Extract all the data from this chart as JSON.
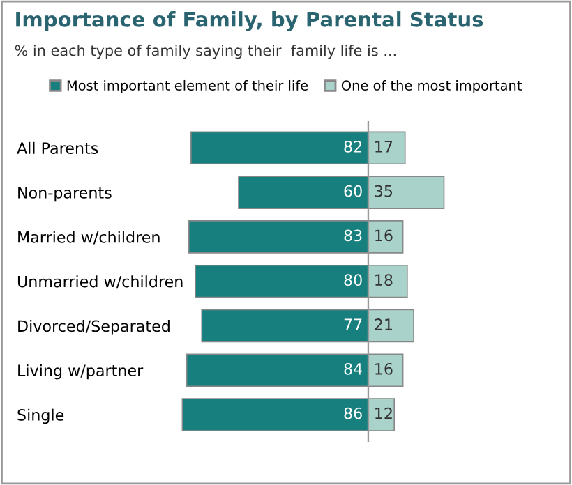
{
  "chart_data": [
    {
      "type": "bar",
      "orientation": "horizontal",
      "title": "Importance of Family, by Parental Status",
      "subtitle": "% in each type of family saying their  family life is ...",
      "categories": [
        "All Parents",
        "Non-parents",
        "Married w/children",
        "Unmarried w/children",
        "Divorced/Separated",
        "Living w/partner",
        "Single"
      ],
      "series": [
        {
          "name": "Most important element of their life",
          "color": "#17807e",
          "values": [
            82,
            60,
            83,
            80,
            77,
            84,
            86
          ]
        }
      ],
      "data_labels": true,
      "legend": "top",
      "tick_labels": "y"
    },
    {
      "type": "bar",
      "orientation": "horizontal",
      "categories": [
        null,
        null,
        null,
        null,
        null,
        null,
        null
      ],
      "series": [
        {
          "name": "One of the most important",
          "color": "#a9d3ca",
          "values": [
            17,
            35,
            16,
            18,
            21,
            16,
            12
          ]
        }
      ],
      "data_labels": true,
      "legend": "top"
    }
  ]
}
